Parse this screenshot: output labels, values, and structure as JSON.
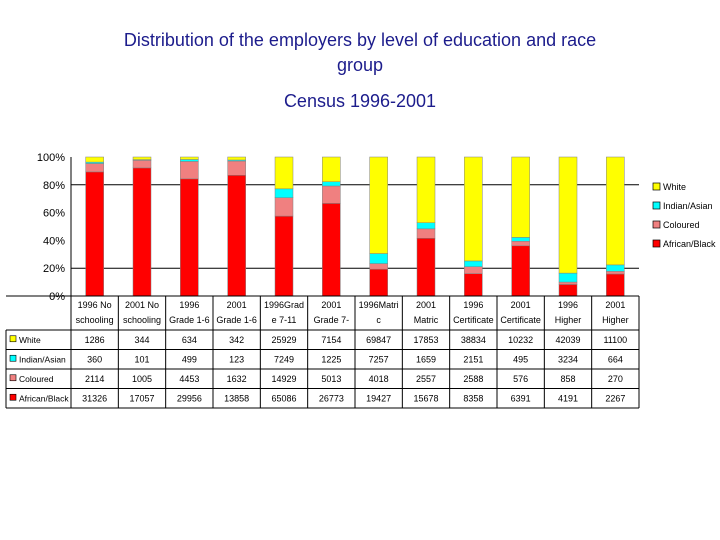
{
  "header": {
    "title_line1": "Distribution of the employers by level of education and race",
    "title_line2": "group",
    "subtitle": "Census 1996-2001"
  },
  "colors": {
    "White": "#ffff00",
    "Indian/Asian": "#00ffff",
    "Coloured": "#f08080",
    "African/Black": "#ff0000"
  },
  "chart_data": {
    "type": "bar",
    "stacked": "percent",
    "title": "Distribution of the employers by level of education and race group",
    "subtitle": "Census 1996-2001",
    "ylim": [
      0,
      100
    ],
    "y_ticks": [
      "0%",
      "20%",
      "40%",
      "60%",
      "80%",
      "100%"
    ],
    "grid": "y at 20% and 80% only",
    "legend_position": "right",
    "categories": [
      [
        "1996 No",
        "schooling"
      ],
      [
        "2001 No",
        "schooling"
      ],
      [
        "1996",
        "Grade 1-6"
      ],
      [
        "2001",
        "Grade 1-6"
      ],
      [
        "1996Grad",
        "e 7-11"
      ],
      [
        "2001",
        "Grade 7-"
      ],
      [
        "1996Matri",
        "c"
      ],
      [
        "2001",
        "Matric"
      ],
      [
        "1996",
        "Certificate"
      ],
      [
        "2001",
        "Certificate"
      ],
      [
        "1996",
        "Higher"
      ],
      [
        "2001",
        "Higher"
      ]
    ],
    "series": [
      {
        "name": "White",
        "values": [
          1286,
          344,
          634,
          342,
          25929,
          7154,
          69847,
          17853,
          38834,
          10232,
          42039,
          11100
        ]
      },
      {
        "name": "Indian/Asian",
        "values": [
          360,
          101,
          499,
          123,
          7249,
          1225,
          7257,
          1659,
          2151,
          495,
          3234,
          664
        ]
      },
      {
        "name": "Coloured",
        "values": [
          2114,
          1005,
          4453,
          1632,
          14929,
          5013,
          4018,
          2557,
          2588,
          576,
          858,
          270
        ]
      },
      {
        "name": "African/Black",
        "values": [
          31326,
          17057,
          29956,
          13858,
          65086,
          26773,
          19427,
          15678,
          8358,
          6391,
          4191,
          2267
        ]
      }
    ]
  }
}
